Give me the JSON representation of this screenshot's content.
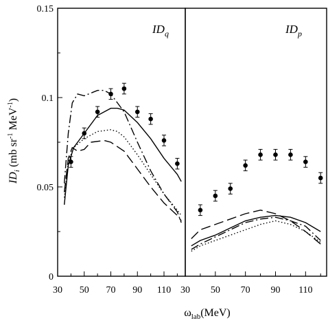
{
  "chart_data": {
    "type": "line",
    "y_axis": {
      "range": [
        0,
        0.15
      ],
      "ticks": [
        0,
        0.05,
        0.1,
        0.15
      ],
      "tick_labels": [
        "0",
        "0.05",
        "0.1",
        "0.15"
      ]
    },
    "x_axis": {
      "ticks": [
        30,
        50,
        70,
        90,
        110
      ],
      "tick_labels": [
        "30",
        "50",
        "70",
        "90",
        "110"
      ]
    },
    "panels": [
      {
        "label_main": "ID",
        "label_sub": "q",
        "xlim": [
          30,
          126
        ],
        "series": [
          {
            "style": "solid",
            "points": [
              [
                35,
                0.04
              ],
              [
                38,
                0.062
              ],
              [
                42,
                0.072
              ],
              [
                50,
                0.08
              ],
              [
                60,
                0.09
              ],
              [
                70,
                0.094
              ],
              [
                75,
                0.094
              ],
              [
                80,
                0.093
              ],
              [
                90,
                0.086
              ],
              [
                100,
                0.077
              ],
              [
                110,
                0.066
              ],
              [
                120,
                0.057
              ],
              [
                123,
                0.053
              ]
            ]
          },
          {
            "style": "dashed",
            "points": [
              [
                35,
                0.047
              ],
              [
                38,
                0.066
              ],
              [
                41,
                0.072
              ],
              [
                45,
                0.07
              ],
              [
                50,
                0.071
              ],
              [
                55,
                0.075
              ],
              [
                65,
                0.076
              ],
              [
                70,
                0.075
              ],
              [
                80,
                0.07
              ],
              [
                90,
                0.06
              ],
              [
                100,
                0.05
              ],
              [
                110,
                0.041
              ],
              [
                120,
                0.034
              ],
              [
                123,
                0.031
              ]
            ]
          },
          {
            "style": "dotted",
            "points": [
              [
                35,
                0.044
              ],
              [
                38,
                0.064
              ],
              [
                42,
                0.072
              ],
              [
                50,
                0.077
              ],
              [
                60,
                0.081
              ],
              [
                70,
                0.082
              ],
              [
                75,
                0.081
              ],
              [
                80,
                0.078
              ],
              [
                90,
                0.068
              ],
              [
                100,
                0.057
              ],
              [
                110,
                0.046
              ],
              [
                120,
                0.037
              ],
              [
                123,
                0.034
              ]
            ]
          },
          {
            "style": "dashdot",
            "points": [
              [
                35,
                0.052
              ],
              [
                38,
                0.08
              ],
              [
                41,
                0.097
              ],
              [
                45,
                0.102
              ],
              [
                50,
                0.101
              ],
              [
                60,
                0.104
              ],
              [
                65,
                0.104
              ],
              [
                70,
                0.102
              ],
              [
                80,
                0.092
              ],
              [
                90,
                0.075
              ],
              [
                100,
                0.059
              ],
              [
                110,
                0.046
              ],
              [
                120,
                0.036
              ],
              [
                123,
                0.03
              ]
            ]
          }
        ],
        "points": [
          {
            "x": 40,
            "y": 0.064,
            "err": 0.003
          },
          {
            "x": 50,
            "y": 0.08,
            "err": 0.003
          },
          {
            "x": 60,
            "y": 0.092,
            "err": 0.003
          },
          {
            "x": 70,
            "y": 0.102,
            "err": 0.003
          },
          {
            "x": 80,
            "y": 0.105,
            "err": 0.003
          },
          {
            "x": 90,
            "y": 0.092,
            "err": 0.003
          },
          {
            "x": 100,
            "y": 0.088,
            "err": 0.003
          },
          {
            "x": 110,
            "y": 0.076,
            "err": 0.003
          },
          {
            "x": 120,
            "y": 0.063,
            "err": 0.003
          }
        ]
      },
      {
        "label_main": "ID",
        "label_sub": "p",
        "xlim": [
          30,
          124
        ],
        "series": [
          {
            "style": "solid",
            "points": [
              [
                34,
                0.017
              ],
              [
                40,
                0.02
              ],
              [
                50,
                0.023
              ],
              [
                60,
                0.027
              ],
              [
                70,
                0.031
              ],
              [
                80,
                0.033
              ],
              [
                90,
                0.034
              ],
              [
                100,
                0.033
              ],
              [
                110,
                0.03
              ],
              [
                120,
                0.025
              ]
            ]
          },
          {
            "style": "dashed",
            "points": [
              [
                34,
                0.021
              ],
              [
                40,
                0.026
              ],
              [
                50,
                0.029
              ],
              [
                60,
                0.032
              ],
              [
                70,
                0.035
              ],
              [
                80,
                0.037
              ],
              [
                90,
                0.035
              ],
              [
                100,
                0.031
              ],
              [
                110,
                0.025
              ],
              [
                120,
                0.018
              ]
            ]
          },
          {
            "style": "dotted",
            "points": [
              [
                34,
                0.014
              ],
              [
                40,
                0.017
              ],
              [
                50,
                0.02
              ],
              [
                60,
                0.023
              ],
              [
                70,
                0.026
              ],
              [
                80,
                0.029
              ],
              [
                90,
                0.031
              ],
              [
                100,
                0.029
              ],
              [
                110,
                0.025
              ],
              [
                120,
                0.019
              ]
            ]
          },
          {
            "style": "dashdot",
            "points": [
              [
                34,
                0.015
              ],
              [
                40,
                0.018
              ],
              [
                50,
                0.022
              ],
              [
                60,
                0.026
              ],
              [
                70,
                0.03
              ],
              [
                80,
                0.032
              ],
              [
                90,
                0.033
              ],
              [
                100,
                0.031
              ],
              [
                110,
                0.028
              ],
              [
                120,
                0.02
              ]
            ]
          }
        ],
        "points": [
          {
            "x": 40,
            "y": 0.037,
            "err": 0.003
          },
          {
            "x": 50,
            "y": 0.045,
            "err": 0.003
          },
          {
            "x": 60,
            "y": 0.049,
            "err": 0.003
          },
          {
            "x": 70,
            "y": 0.062,
            "err": 0.003
          },
          {
            "x": 80,
            "y": 0.068,
            "err": 0.003
          },
          {
            "x": 90,
            "y": 0.068,
            "err": 0.003
          },
          {
            "x": 100,
            "y": 0.068,
            "err": 0.003
          },
          {
            "x": 110,
            "y": 0.064,
            "err": 0.003
          },
          {
            "x": 120,
            "y": 0.055,
            "err": 0.003
          }
        ]
      }
    ],
    "ylabel": {
      "main": "ID",
      "sub": "i",
      "rest": " (mb sr",
      "sup": "-1",
      "rest2": " MeV",
      "sup2": "-1",
      "end": ")"
    },
    "xlabel": {
      "main": "ω",
      "sub": "lab",
      "rest": "(MeV)"
    }
  }
}
